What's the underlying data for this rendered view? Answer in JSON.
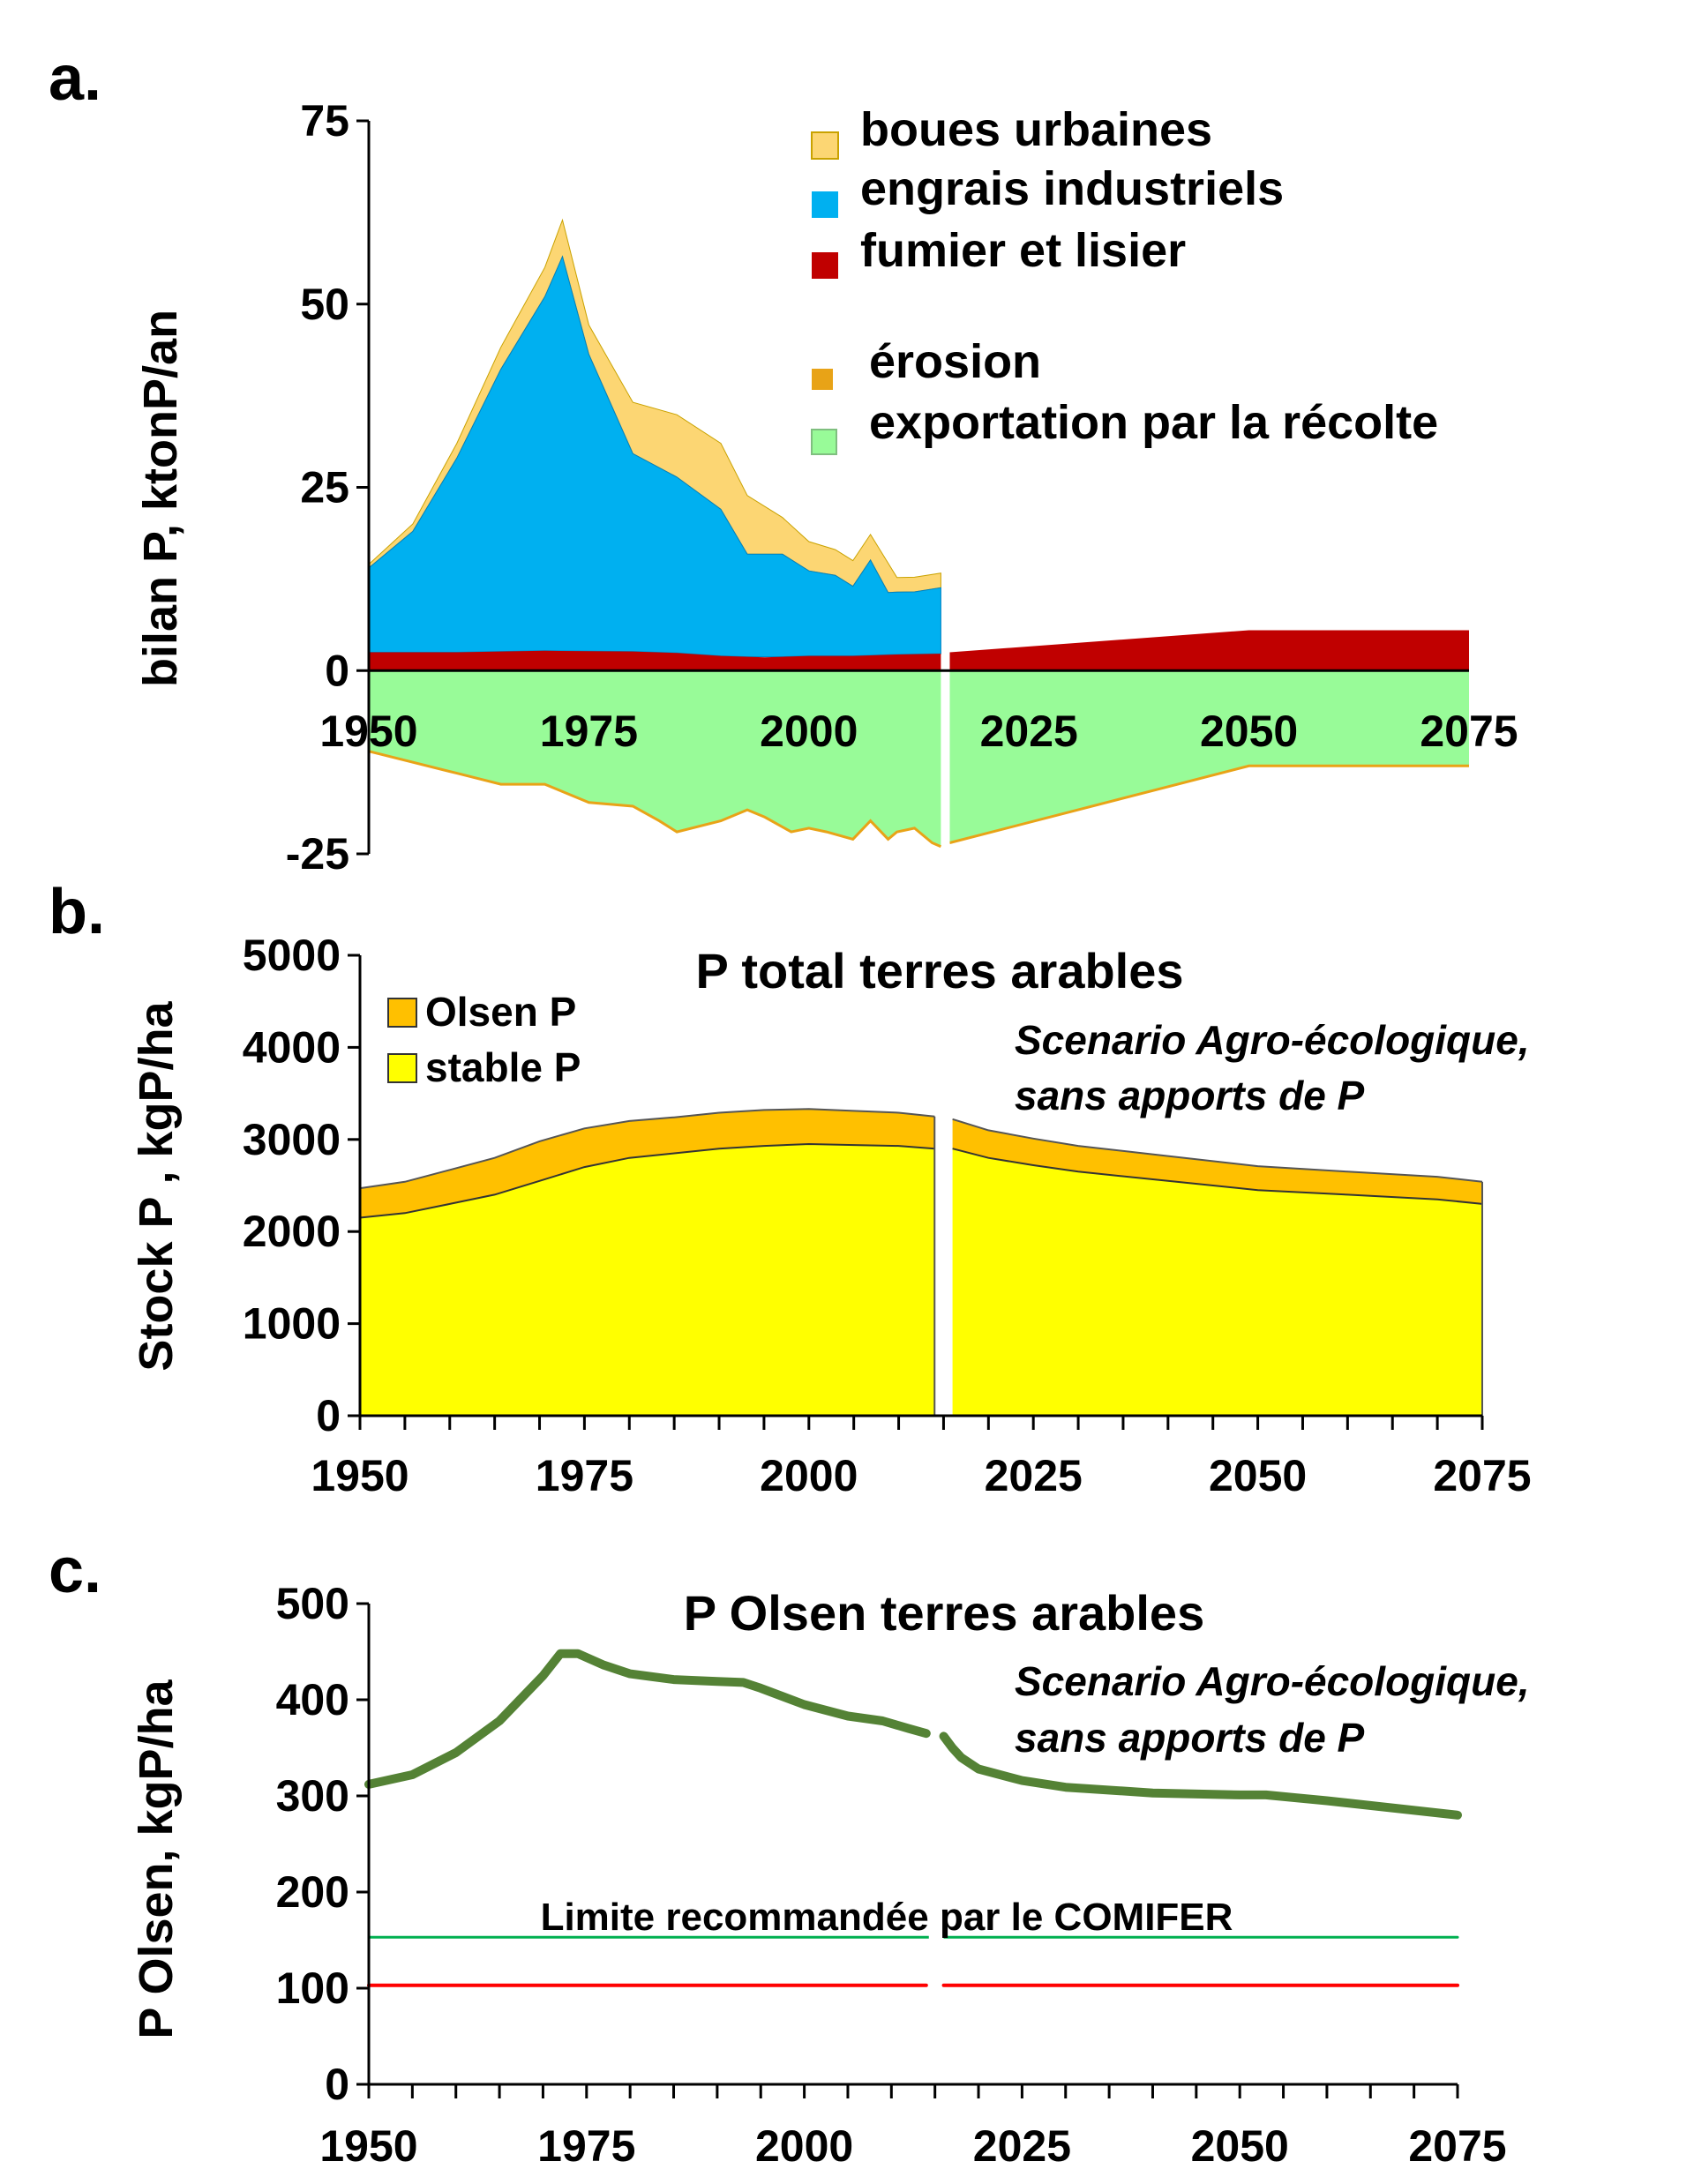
{
  "chart_data": [
    {
      "panel": "a.",
      "type": "area",
      "ylabel": "bilan P, ktonP/an",
      "xlim": [
        1950,
        2075
      ],
      "ylim": [
        -25,
        75
      ],
      "yticks": [
        75,
        50,
        25,
        0,
        -25
      ],
      "xticks": [
        1950,
        1975,
        2000,
        2025,
        2050,
        2075
      ],
      "legend_position": "top-right",
      "legend": [
        "boues urbaines",
        "engrais industriels",
        "fumier et lisier",
        "érosion",
        "exportation par la récolte"
      ],
      "colors": {
        "boues": "#fcd673",
        "engrais": "#00b0f0",
        "fumier": "#c00000",
        "erosion": "#e8a317",
        "exportation": "#98fb98"
      },
      "series": [
        {
          "name": "fumier et lisier",
          "x": [
            1950,
            1960,
            1970,
            1980,
            1985,
            1990,
            1995,
            2000,
            2005,
            2010,
            2015
          ],
          "values": [
            2.5,
            2.5,
            2.7,
            2.6,
            2.4,
            2.0,
            1.8,
            2.0,
            2.0,
            2.2,
            2.3
          ]
        },
        {
          "name": "engrais industriels",
          "x": [
            1950,
            1955,
            1960,
            1965,
            1970,
            1972,
            1975,
            1980,
            1985,
            1990,
            1993,
            1997,
            2000,
            2003,
            2005,
            2007,
            2009,
            2010,
            2012,
            2015
          ],
          "values": [
            11.5,
            16.5,
            26.5,
            38.5,
            48.3,
            53.8,
            40.5,
            27.0,
            24.0,
            20.0,
            14.0,
            14.0,
            11.6,
            11.0,
            9.5,
            13.0,
            8.5,
            8.5,
            8.5,
            9.0
          ]
        },
        {
          "name": "boues urbaines",
          "x": [
            1950,
            1955,
            1960,
            1965,
            1970,
            1972,
            1975,
            1980,
            1985,
            1990,
            1993,
            1997,
            2000,
            2003,
            2005,
            2007,
            2009,
            2010,
            2012,
            2015
          ],
          "values": [
            0.5,
            1.0,
            2.0,
            3.0,
            4.0,
            5.0,
            4.0,
            7.0,
            8.5,
            9.0,
            8.0,
            5.0,
            4.0,
            3.5,
            3.5,
            3.5,
            4.0,
            2.0,
            2.0,
            2.0
          ]
        },
        {
          "name": "fumier et lisier (scénario)",
          "x": [
            2016,
            2050,
            2075
          ],
          "values": [
            2.5,
            5.5,
            5.5
          ]
        },
        {
          "name": "exportation par la récolte",
          "x": [
            1950,
            1960,
            1965,
            1970,
            1975,
            1980,
            1983,
            1985,
            1990,
            1993,
            1995,
            1998,
            2000,
            2002,
            2005,
            2007,
            2009,
            2010,
            2012,
            2014,
            2015,
            2016,
            2050,
            2075
          ],
          "values": [
            -11,
            -14,
            -15.5,
            -15.5,
            -18,
            -18.5,
            -20.5,
            -22,
            -20.5,
            -19,
            -20,
            -22,
            -21.5,
            -22,
            -23,
            -20.5,
            -23,
            -22,
            -21.5,
            -23.5,
            -24,
            -23.5,
            -13,
            -13
          ]
        }
      ]
    },
    {
      "panel": "b.",
      "type": "area",
      "title": "P total terres arables",
      "ylabel": "Stock P , kgP/ha",
      "xlim": [
        1950,
        2075
      ],
      "ylim": [
        0,
        5000
      ],
      "yticks": [
        5000,
        4000,
        3000,
        2000,
        1000,
        0
      ],
      "xticks": [
        1950,
        1975,
        2000,
        2025,
        2050,
        2075
      ],
      "legend_position": "top-left",
      "legend": [
        "Olsen P",
        "stable P"
      ],
      "colors": {
        "olsen": "#ffc000",
        "stable": "#ffff00"
      },
      "annotation": [
        "Scenario Agro-écologique,",
        "sans apports de P"
      ],
      "series": [
        {
          "name": "stable P",
          "x": [
            1950,
            1955,
            1960,
            1965,
            1970,
            1975,
            1980,
            1985,
            1990,
            1995,
            2000,
            2005,
            2010,
            2014,
            2016,
            2020,
            2025,
            2030,
            2040,
            2050,
            2060,
            2070,
            2075
          ],
          "values": [
            2150,
            2200,
            2300,
            2400,
            2550,
            2700,
            2800,
            2850,
            2900,
            2930,
            2950,
            2940,
            2930,
            2900,
            2900,
            2800,
            2720,
            2650,
            2550,
            2450,
            2400,
            2350,
            2300
          ]
        },
        {
          "name": "Olsen P",
          "x": [
            1950,
            1955,
            1960,
            1965,
            1970,
            1975,
            1980,
            1985,
            1990,
            1995,
            2000,
            2005,
            2010,
            2014,
            2016,
            2020,
            2025,
            2030,
            2040,
            2050,
            2060,
            2070,
            2075
          ],
          "values": [
            320,
            340,
            370,
            400,
            430,
            420,
            400,
            390,
            390,
            390,
            380,
            370,
            360,
            350,
            320,
            300,
            290,
            280,
            270,
            260,
            250,
            245,
            240
          ]
        }
      ]
    },
    {
      "panel": "c.",
      "type": "line",
      "title": "P Olsen terres arables",
      "ylabel": "P Olsen, kgP/ha",
      "xlim": [
        1950,
        2075
      ],
      "ylim": [
        0,
        500
      ],
      "yticks": [
        500,
        400,
        300,
        200,
        100,
        0
      ],
      "xticks": [
        1950,
        1975,
        2000,
        2025,
        2050,
        2075
      ],
      "annotation": [
        "Scenario Agro-écologique,",
        "sans apports de P"
      ],
      "hline_label": "Limite recommandée par le COMIFER",
      "colors": {
        "olsen": "#548235",
        "green_line": "#00b050",
        "red_line": "#ff0000"
      },
      "series": [
        {
          "name": "P Olsen",
          "x": [
            1950,
            1955,
            1960,
            1965,
            1970,
            1972,
            1974,
            1977,
            1980,
            1985,
            1990,
            1993,
            1995,
            2000,
            2005,
            2009,
            2012,
            2014
          ],
          "values": [
            312,
            322,
            345,
            378,
            425,
            448,
            448,
            436,
            427,
            421,
            419,
            418,
            412,
            395,
            383,
            378,
            370,
            365
          ]
        },
        {
          "name": "P Olsen (scénario)",
          "x": [
            2016,
            2017,
            2018,
            2020,
            2025,
            2030,
            2040,
            2050,
            2053,
            2060,
            2075
          ],
          "values": [
            362,
            350,
            340,
            328,
            316,
            309,
            303,
            301,
            301,
            295,
            280
          ]
        },
        {
          "name": "green",
          "x": [
            1950,
            2075
          ],
          "values": [
            153,
            153
          ]
        },
        {
          "name": "red",
          "x": [
            1950,
            2014
          ],
          "values": [
            103,
            103
          ]
        },
        {
          "name": "red (scénario)",
          "x": [
            2016,
            2075
          ],
          "values": [
            103,
            103
          ]
        }
      ]
    }
  ]
}
